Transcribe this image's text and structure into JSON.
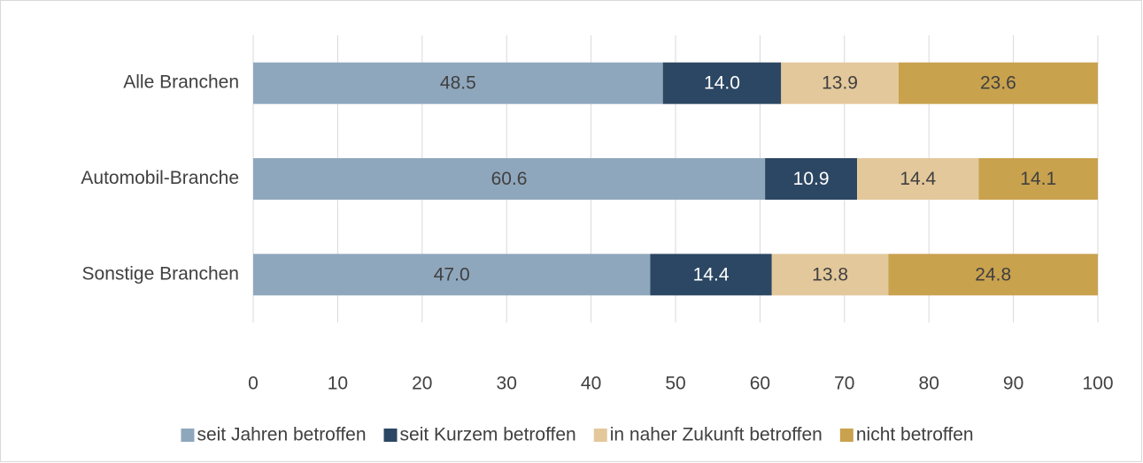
{
  "chart_data": {
    "type": "stacked-bar-horizontal",
    "categories": [
      "Alle Branchen",
      "Automobil-Branche",
      "Sonstige Branchen"
    ],
    "series": [
      {
        "name": "seit Jahren betroffen",
        "color": "#8fa7bd",
        "values": [
          48.5,
          60.6,
          47.0
        ],
        "value_labels": [
          "48.5",
          "60.6",
          "47.0"
        ]
      },
      {
        "name": "seit Kurzem betroffen",
        "color": "#2c4763",
        "values": [
          14.0,
          10.9,
          14.4
        ],
        "value_labels": [
          "14.0",
          "10.9",
          "14.4"
        ]
      },
      {
        "name": "in naher Zukunft betroffen",
        "color": "#e3c89b",
        "values": [
          13.9,
          14.4,
          13.8
        ],
        "value_labels": [
          "13.9",
          "14.4",
          "13.8"
        ]
      },
      {
        "name": "nicht betroffen",
        "color": "#c9a24e",
        "values": [
          23.6,
          14.1,
          24.8
        ],
        "value_labels": [
          "23.6",
          "14.1",
          "24.8"
        ]
      }
    ],
    "xlim": [
      0,
      100
    ],
    "xticks": [
      0,
      10,
      20,
      30,
      40,
      50,
      60,
      70,
      80,
      90,
      100
    ],
    "grid": true,
    "legend": "bottom"
  }
}
